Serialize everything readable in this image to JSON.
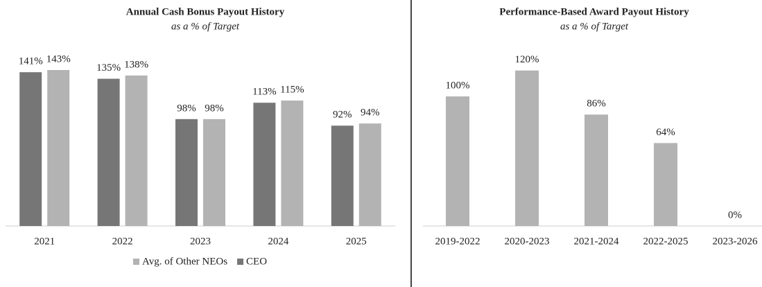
{
  "chart_data": [
    {
      "type": "bar",
      "title": "Annual Cash Bonus Payout History",
      "subtitle": "as a % of Target",
      "categories": [
        "2021",
        "2022",
        "2023",
        "2024",
        "2025"
      ],
      "series": [
        {
          "name": "CEO",
          "color": "#767676",
          "values": [
            141,
            135,
            98,
            113,
            92
          ],
          "value_labels": [
            "141%",
            "135%",
            "98%",
            "113%",
            "92%"
          ]
        },
        {
          "name": "Avg. of Other NEOs",
          "color": "#b3b3b3",
          "values": [
            143,
            138,
            98,
            115,
            94
          ],
          "value_labels": [
            "143%",
            "138%",
            "98%",
            "115%",
            "94%"
          ]
        }
      ],
      "ylim": [
        0,
        150
      ],
      "legend": "bottom"
    },
    {
      "type": "bar",
      "title": "Performance-Based Award  Payout History",
      "subtitle": "as a % of Target",
      "categories": [
        "2019-2022",
        "2020-2023",
        "2021-2024",
        "2022-2025",
        "2023-2026"
      ],
      "values": [
        100,
        120,
        86,
        64,
        0
      ],
      "value_labels": [
        "100%",
        "120%",
        "86%",
        "64%",
        "0%"
      ],
      "color": "#b3b3b3",
      "ylim": [
        0,
        130
      ]
    }
  ]
}
